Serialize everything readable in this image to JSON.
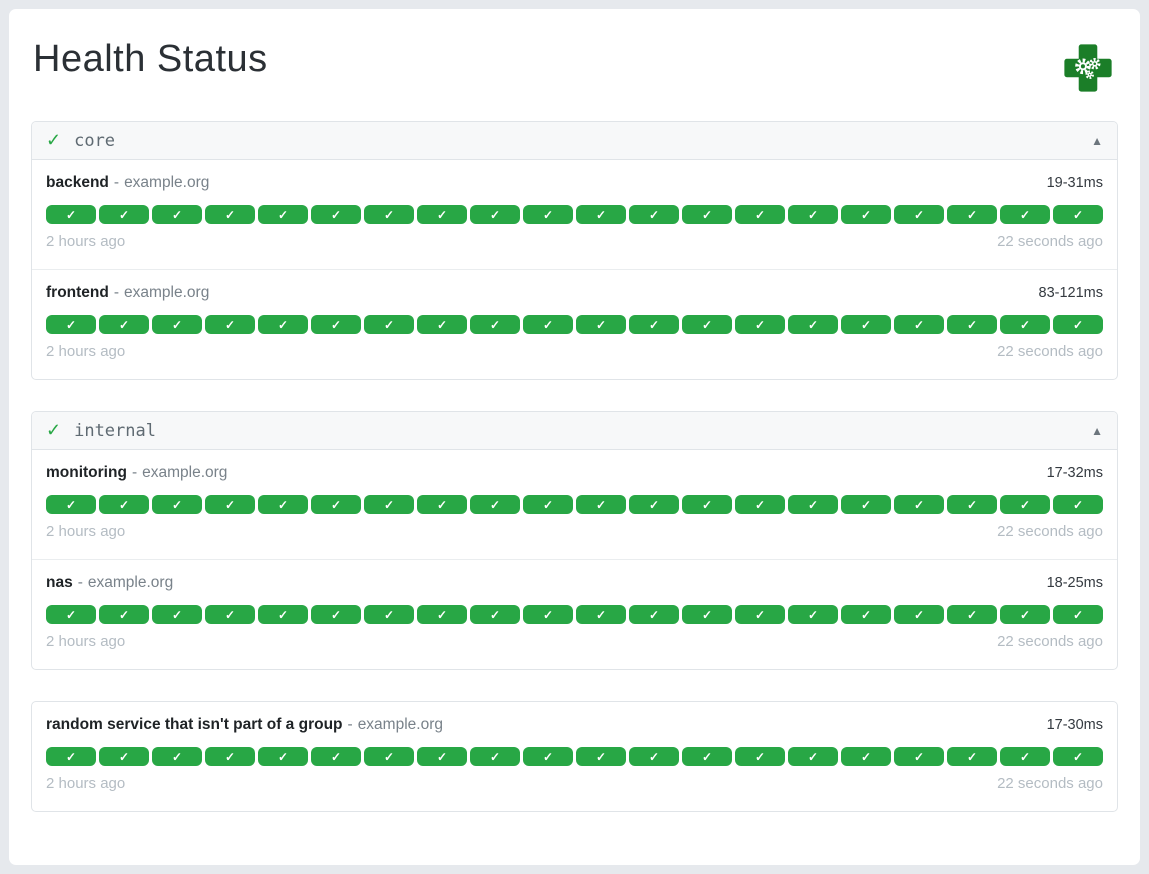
{
  "app": {
    "title": "Health Status",
    "logo_icon": "health-cross-gears-icon"
  },
  "glyphs": {
    "check": "✓",
    "collapse": "▲",
    "separator": "-"
  },
  "colors": {
    "success_green": "#28a745",
    "logo_green": "#1b7e28",
    "page_background": "#e6e9ed",
    "group_header_background": "#f7f8f9"
  },
  "groups": [
    {
      "name": "core",
      "status": "up",
      "collapsed": false,
      "services": [
        {
          "name": "backend",
          "host": "example.org",
          "response_time": "19-31ms",
          "oldest_check": "2 hours ago",
          "latest_check": "22 seconds ago",
          "checks": 20,
          "status": "up"
        },
        {
          "name": "frontend",
          "host": "example.org",
          "response_time": "83-121ms",
          "oldest_check": "2 hours ago",
          "latest_check": "22 seconds ago",
          "checks": 20,
          "status": "up"
        }
      ]
    },
    {
      "name": "internal",
      "status": "up",
      "collapsed": false,
      "services": [
        {
          "name": "monitoring",
          "host": "example.org",
          "response_time": "17-32ms",
          "oldest_check": "2 hours ago",
          "latest_check": "22 seconds ago",
          "checks": 20,
          "status": "up"
        },
        {
          "name": "nas",
          "host": "example.org",
          "response_time": "18-25ms",
          "oldest_check": "2 hours ago",
          "latest_check": "22 seconds ago",
          "checks": 20,
          "status": "up"
        }
      ]
    },
    {
      "name": null,
      "status": "up",
      "collapsed": false,
      "services": [
        {
          "name": "random service that isn't part of a group",
          "host": "example.org",
          "response_time": "17-30ms",
          "oldest_check": "2 hours ago",
          "latest_check": "22 seconds ago",
          "checks": 20,
          "status": "up"
        }
      ]
    }
  ]
}
